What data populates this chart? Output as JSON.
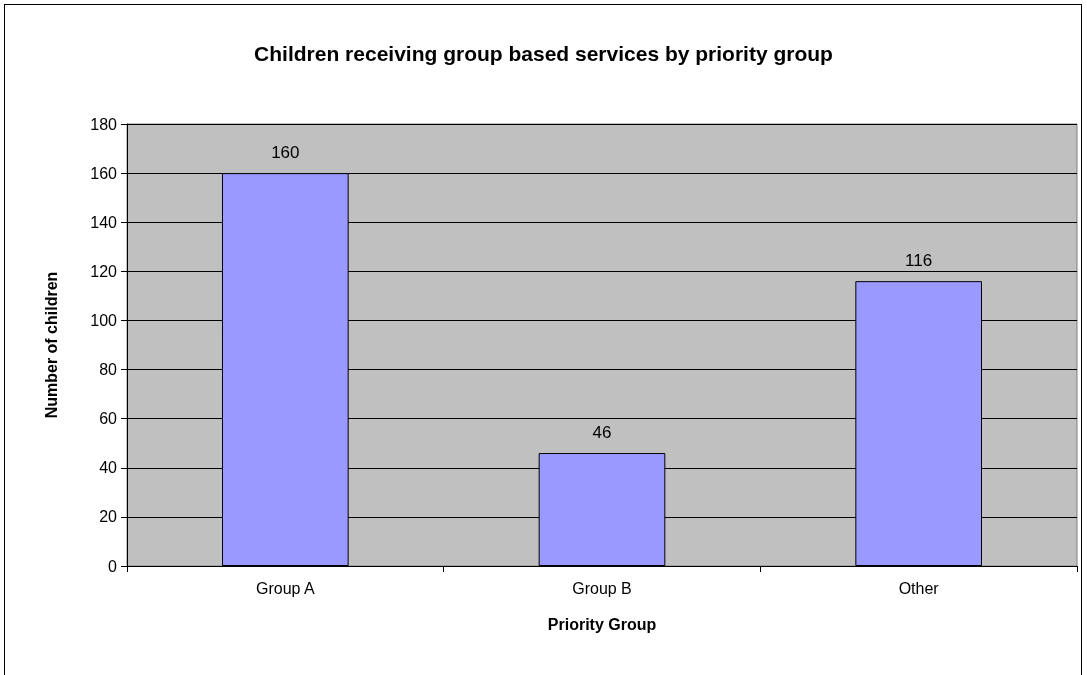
{
  "chart_data": {
    "type": "bar",
    "title": "Children receiving group based services by priority group",
    "xlabel": "Priority Group",
    "ylabel": "Number of children",
    "categories": [
      "Group A",
      "Group B",
      "Other"
    ],
    "values": [
      160,
      46,
      116
    ],
    "color": "#9999ff",
    "ylim": [
      0,
      180
    ],
    "yticks": [
      0,
      20,
      40,
      60,
      80,
      100,
      120,
      140,
      160,
      180
    ],
    "grid": "y",
    "data_labels": true
  }
}
